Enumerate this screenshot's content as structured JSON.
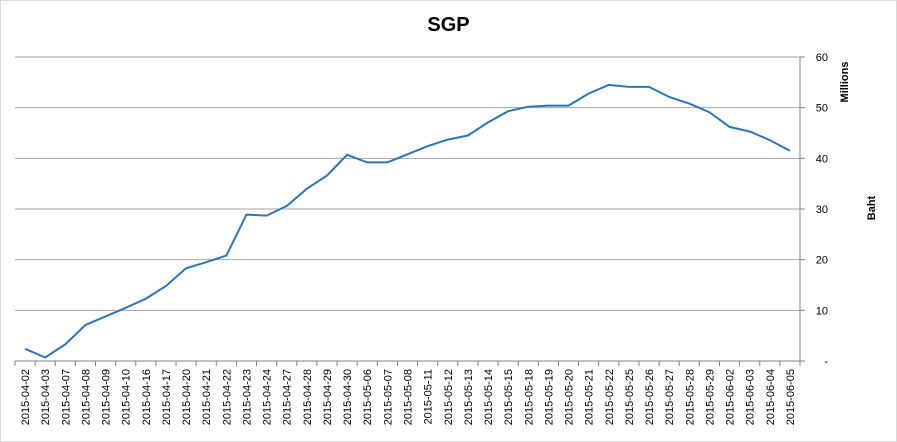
{
  "chart_data": {
    "type": "line",
    "title": "SGP",
    "ylabel": "Baht",
    "y_unit_label": "Millions",
    "y_axis_position": "right",
    "ylim": [
      0,
      60
    ],
    "yticks": [
      0,
      10,
      20,
      30,
      40,
      50,
      60
    ],
    "ytick_labels": [
      "-",
      "10",
      "20",
      "30",
      "40",
      "50",
      "60"
    ],
    "grid": true,
    "legend": "none",
    "line_color": "#2e75b6",
    "x": [
      "2015-04-02",
      "2015-04-03",
      "2015-04-07",
      "2015-04-08",
      "2015-04-09",
      "2015-04-10",
      "2015-04-16",
      "2015-04-17",
      "2015-04-20",
      "2015-04-21",
      "2015-04-22",
      "2015-04-23",
      "2015-04-24",
      "2015-04-27",
      "2015-04-28",
      "2015-04-29",
      "2015-04-30",
      "2015-05-06",
      "2015-05-07",
      "2015-05-08",
      "2015-05-11",
      "2015-05-12",
      "2015-05-13",
      "2015-05-14",
      "2015-05-15",
      "2015-05-18",
      "2015-05-19",
      "2015-05-20",
      "2015-05-21",
      "2015-05-22",
      "2015-05-25",
      "2015-05-26",
      "2015-05-27",
      "2015-05-28",
      "2015-05-29",
      "2015-06-02",
      "2015-06-03",
      "2015-06-04",
      "2015-06-05"
    ],
    "values": [
      2.4,
      0.7,
      3.3,
      7.1,
      8.8,
      10.5,
      12.3,
      14.8,
      18.3,
      19.5,
      20.8,
      28.9,
      28.7,
      30.6,
      34.0,
      36.6,
      40.7,
      39.2,
      39.2,
      40.8,
      42.4,
      43.7,
      44.5,
      47.1,
      49.3,
      50.2,
      50.4,
      50.4,
      52.8,
      54.5,
      54.1,
      54.1,
      52.1,
      50.8,
      49.1,
      46.2,
      45.3,
      43.6,
      41.5
    ]
  }
}
